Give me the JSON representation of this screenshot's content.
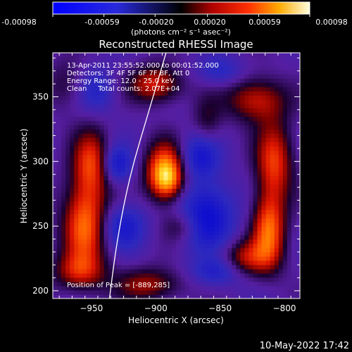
{
  "colorbar": {
    "tick_labels": [
      "-0.00098",
      "-0.00059",
      "-0.00020",
      "0.00020",
      "0.00059",
      "0.00098"
    ],
    "unit_label": "(photons cm⁻² s⁻¹ asec⁻²)",
    "range": [
      -0.00098,
      0.00098
    ]
  },
  "chart_data": {
    "type": "heatmap",
    "title": "Reconstructed RHESSI Image",
    "xlabel": "Heliocentric X (arcsec)",
    "ylabel": "Heliocentric Y (arcsec)",
    "xlim": [
      -980,
      -788
    ],
    "ylim": [
      194,
      384
    ],
    "x_ticks": [
      -950,
      -900,
      -850,
      -800
    ],
    "x_tick_labels": [
      "−950",
      "−900",
      "−850",
      "−800"
    ],
    "y_ticks": [
      200,
      250,
      300,
      350
    ],
    "y_tick_labels": [
      "200",
      "250",
      "300",
      "350"
    ],
    "annotations": [
      "13-Apr-2011 23:55:52.000 to 00:01:52.000",
      "Detectors: 3F 4F 5F 6F 7F 8F, Att 0",
      "Energy Range: 12.0 - 25.0 keV",
      "Clean     Total counts: 2.07E+04"
    ],
    "peak_label": "Position of Peak = [-889,285]",
    "peak": [
      -889,
      285
    ],
    "limb_points": [
      [
        -936,
        194
      ],
      [
        -930,
        240
      ],
      [
        -920,
        290
      ],
      [
        -905,
        340
      ],
      [
        -892,
        384
      ]
    ],
    "sources": [
      {
        "x": -893,
        "y": 292,
        "sx": 10,
        "sy": 15,
        "amp": 1.0
      },
      {
        "x": -890,
        "y": 285,
        "sx": 8,
        "sy": 9,
        "amp": 0.35
      },
      {
        "x": -812,
        "y": 247,
        "sx": 9,
        "sy": 20,
        "amp": 0.82
      },
      {
        "x": -808,
        "y": 300,
        "sx": 10,
        "sy": 22,
        "amp": 0.7
      },
      {
        "x": -822,
        "y": 348,
        "sx": 16,
        "sy": 12,
        "amp": 0.6
      },
      {
        "x": -830,
        "y": 225,
        "sx": 14,
        "sy": 10,
        "amp": 0.55
      },
      {
        "x": -955,
        "y": 252,
        "sx": 12,
        "sy": 24,
        "amp": 0.85
      },
      {
        "x": -950,
        "y": 300,
        "sx": 10,
        "sy": 18,
        "amp": 0.65
      },
      {
        "x": -960,
        "y": 215,
        "sx": 14,
        "sy": 10,
        "amp": 0.5
      },
      {
        "x": -900,
        "y": 360,
        "sx": 14,
        "sy": 10,
        "amp": 0.65
      },
      {
        "x": -905,
        "y": 205,
        "sx": 18,
        "sy": 9,
        "amp": 0.5
      },
      {
        "x": -880,
        "y": 250,
        "sx": 10,
        "sy": 8,
        "amp": 0.3
      },
      {
        "x": -860,
        "y": 330,
        "sx": 8,
        "sy": 14,
        "amp": 0.3
      },
      {
        "x": -970,
        "y": 360,
        "sx": 10,
        "sy": 14,
        "amp": 0.25
      },
      {
        "x": -930,
        "y": 298,
        "sx": 8,
        "sy": 10,
        "amp": -0.55
      },
      {
        "x": -925,
        "y": 250,
        "sx": 12,
        "sy": 12,
        "amp": -0.5
      },
      {
        "x": -860,
        "y": 258,
        "sx": 14,
        "sy": 18,
        "amp": -0.7
      },
      {
        "x": -865,
        "y": 305,
        "sx": 10,
        "sy": 12,
        "amp": -0.55
      },
      {
        "x": -852,
        "y": 215,
        "sx": 14,
        "sy": 8,
        "amp": -0.45
      },
      {
        "x": -945,
        "y": 355,
        "sx": 10,
        "sy": 12,
        "amp": -0.35
      },
      {
        "x": -850,
        "y": 370,
        "sx": 12,
        "sy": 8,
        "amp": -0.35
      }
    ]
  },
  "footer": {
    "date": "10-May-2022 17:42"
  }
}
